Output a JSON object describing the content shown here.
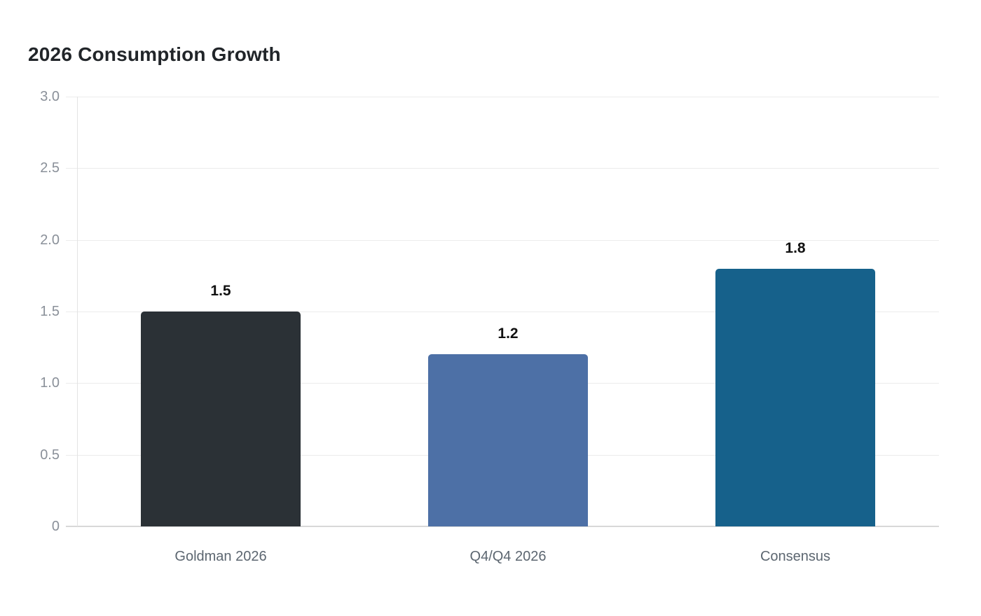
{
  "title": "2026 Consumption Growth",
  "colors": {
    "background": "#ffffff",
    "title_text": "#212529",
    "gridline": "#ececec",
    "baseline": "#d8d8d8",
    "axis_line": "#e3e3e3",
    "y_tick_label": "#8a9099",
    "x_category_label": "#5c6670",
    "value_label": "#111111"
  },
  "chart_data": {
    "type": "bar",
    "title": "2026 Consumption Growth",
    "categories": [
      "Goldman 2026",
      "Q4/Q4 2026",
      "Consensus"
    ],
    "values": [
      1.5,
      1.2,
      1.8
    ],
    "value_labels": [
      "1.5",
      "1.2",
      "1.8"
    ],
    "bar_colors": [
      "#2b3136",
      "#4d70a6",
      "#16618b"
    ],
    "xlabel": "",
    "ylabel": "",
    "ylim": [
      0,
      3.0
    ],
    "yticks": [
      0,
      0.5,
      1.0,
      1.5,
      2.0,
      2.5,
      3.0
    ],
    "ytick_labels": [
      "0",
      "0.5",
      "1.0",
      "1.5",
      "2.0",
      "2.5",
      "3.0"
    ],
    "grid": "horizontal",
    "legend": "none"
  }
}
